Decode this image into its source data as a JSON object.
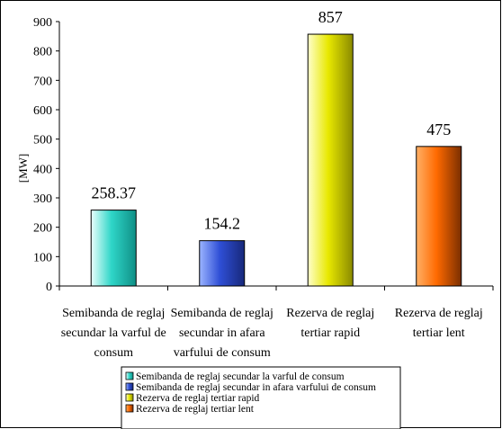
{
  "chart_data": {
    "type": "bar",
    "categories": [
      [
        "Semibanda de reglaj",
        "secundar la varful de",
        "consum"
      ],
      [
        "Semibanda de reglaj",
        "secundar in afara",
        "varfului de consum"
      ],
      [
        "Rezerva de reglaj",
        "tertiar rapid"
      ],
      [
        "Rezerva de reglaj",
        "tertiar lent"
      ]
    ],
    "values": [
      258.37,
      154.2,
      857,
      475
    ],
    "value_labels": [
      "258.37",
      "154.2",
      "857",
      "475"
    ],
    "ylabel": "[MW]",
    "ylim": [
      0,
      900
    ],
    "yticks": [
      0,
      100,
      200,
      300,
      400,
      500,
      600,
      700,
      800,
      900
    ],
    "legend": [
      "Semibanda de reglaj secundar la varful de consum",
      "Semibanda de reglaj secundar in afara varfului de consum",
      "Rezerva de reglaj tertiar rapid",
      "Rezerva de reglaj tertiar lent"
    ],
    "legend_position": "bottom",
    "grid": false,
    "colors": [
      [
        "#eafffc",
        "#2fd6c8",
        "#0f8f86"
      ],
      [
        "#9bb4ff",
        "#2f4fd6",
        "#17287a"
      ],
      [
        "#ffffcc",
        "#e8e800",
        "#8a8a00"
      ],
      [
        "#ffb066",
        "#ff6a00",
        "#7a2e00"
      ]
    ]
  }
}
